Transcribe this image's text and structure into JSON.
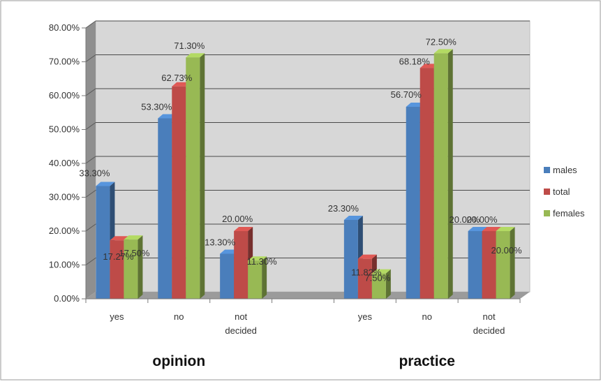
{
  "chart_data": {
    "type": "bar",
    "title": "",
    "ylabel": "",
    "ylim": [
      0,
      80
    ],
    "y_ticks": [
      "0.00%",
      "10.00%",
      "20.00%",
      "30.00%",
      "40.00%",
      "50.00%",
      "60.00%",
      "70.00%",
      "80.00%"
    ],
    "groups": [
      {
        "label": "opinion",
        "categories": [
          "yes",
          "no",
          "not decided"
        ]
      },
      {
        "label": "practice",
        "categories": [
          "yes",
          "no",
          "not decided"
        ]
      }
    ],
    "categories": [
      "yes",
      "no",
      "not decided",
      "yes",
      "no",
      "not decided"
    ],
    "series": [
      {
        "name": "males",
        "color": "#4a7ebb",
        "values": [
          33.3,
          53.3,
          13.3,
          23.3,
          56.7,
          20.0
        ],
        "labels": [
          "33.30%",
          "53.30%",
          "13.30%",
          "23.30%",
          "56.70%",
          "20.00%"
        ]
      },
      {
        "name": "total",
        "color": "#be4b48",
        "values": [
          17.27,
          62.73,
          20.0,
          11.82,
          68.18,
          20.0
        ],
        "labels": [
          "17.27%",
          "62.73%",
          "20.00%",
          "11.82%",
          "68.18%",
          "20.00%"
        ]
      },
      {
        "name": "females",
        "color": "#98b954",
        "values": [
          17.5,
          71.3,
          11.3,
          7.5,
          72.5,
          20.0
        ],
        "labels": [
          "17.50%",
          "71.30%",
          "11.30%",
          "7.50%",
          "72.50%",
          "20.00%"
        ]
      }
    ],
    "legend_position": "right",
    "grid": true,
    "style": "3d-clustered-column"
  }
}
